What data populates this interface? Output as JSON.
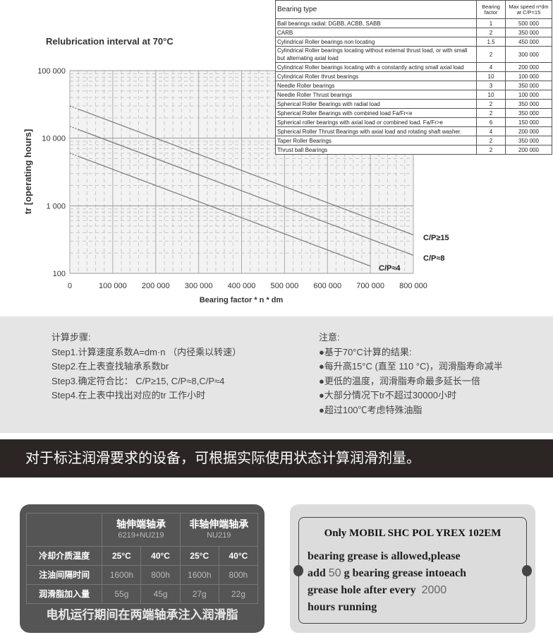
{
  "chart_data": {
    "type": "line",
    "title": "Relubrication interval at 70°C",
    "xlabel": "Bearing factor * n * dm",
    "ylabel": "tr [operating hours]",
    "xlim": [
      0,
      800000
    ],
    "ylim": [
      100,
      100000
    ],
    "yscale": "log",
    "xticks": [
      "0",
      "100 000",
      "200 000",
      "300 000",
      "400 000",
      "500 000",
      "600 000",
      "700 000",
      "800 000"
    ],
    "yticks": [
      "100",
      "1 000",
      "10 000",
      "100 000"
    ],
    "grid": true,
    "series": [
      {
        "name": "C/P≥15",
        "x": [
          0,
          200000,
          400000,
          600000,
          800000
        ],
        "y": [
          30000,
          10000,
          3300,
          1000,
          340
        ]
      },
      {
        "name": "C/P≈8",
        "x": [
          0,
          200000,
          400000,
          600000,
          800000
        ],
        "y": [
          15000,
          5000,
          1650,
          520,
          170
        ]
      },
      {
        "name": "C/P≈4",
        "x": [
          0,
          200000,
          400000,
          600000,
          700000
        ],
        "y": [
          6000,
          2000,
          650,
          210,
          118
        ]
      }
    ]
  },
  "bearing_table": {
    "headers": [
      "Bearing type",
      "Bearing factor",
      "Max speed n*dm at C/P=15"
    ],
    "rows": [
      [
        "Ball bearings radial:  DGBB, ACBB, SABB",
        "1",
        "500 000"
      ],
      [
        "CARB",
        "2",
        "350 000"
      ],
      [
        "Cylindrical Roller bearings non locating",
        "1.5",
        "450 000"
      ],
      [
        "Cylindrical Roller bearings locating without external thrust load, or with small but alternating axial load",
        "2",
        "300 000"
      ],
      [
        "Cylindrical Roller bearings locating with a constantly acting small axial load",
        "4",
        "200 000"
      ],
      [
        "Cylindrical Roller thrust bearings",
        "10",
        "100 000"
      ],
      [
        "Needle Roller bearings",
        "3",
        "350 000"
      ],
      [
        "Needle Roller Thrust bearings",
        "10",
        "100 000"
      ],
      [
        "Spherical Roller Bearings with radial load",
        "2",
        "350 000"
      ],
      [
        "Spherical Roller Bearings with combined load Fa/Fr<e",
        "2",
        "350 000"
      ],
      [
        "Spherical roller bearings with axial load or combined load. Fa/Fr>e",
        "6",
        "150 000"
      ],
      [
        "Spherical Roller Thrust Bearings with axial load and rotating shaft washer.",
        "4",
        "200 000"
      ],
      [
        "Taper Roller Bearings",
        "2",
        "350 000"
      ],
      [
        "Thrust ball Bearings",
        "2",
        "200 000"
      ]
    ]
  },
  "steps": {
    "title": "计算步骤:",
    "items": [
      "Step1.计算速度系数A=dm·n （内径乘以转速）",
      "Step2.在上表查找轴承系数br",
      "Step3.确定符合比： C/P≥15, C/P≈8,C/P≈4",
      "Step4.在上表中找出对应的tr 工作小时"
    ]
  },
  "notes": {
    "title": "注意:",
    "items": [
      "●基于70°C计算的结果:",
      "●每升高15°C (直至 110 °C)，润滑脂寿命减半",
      "●更低的温度，润滑脂寿命最多延长一倍",
      "●大部分情况下tr不超过30000小时",
      "●超过100℃考虑特殊油脂"
    ]
  },
  "banner": "对于标注润滑要求的设备，可根据实际使用状态计算润滑剂量。",
  "grease_table": {
    "col1": "轴伸端轴承",
    "col1_sub": "6219+NU219",
    "col2": "非轴伸端轴承",
    "col2_sub": "NU219",
    "rows": [
      [
        "冷却介质温度",
        "25°C",
        "40°C",
        "25°C",
        "40°C"
      ],
      [
        "注油间隔时间",
        "1600h",
        "800h",
        "1600h",
        "800h"
      ],
      [
        "润滑脂加入量",
        "55g",
        "45g",
        "27g",
        "22g"
      ]
    ],
    "footer": "电机运行期间在两端轴承注入润滑脂"
  },
  "plate": {
    "title": "Only MOBIL SHC POL YREX 102EM",
    "t1": "bearing  grease  is  allowed,please",
    "t2a": "add",
    "amount": "50",
    "t2b": "g bearing grease intoeach",
    "t3": "grease hole after every",
    "hours": "2000",
    "t4": "hours running"
  }
}
